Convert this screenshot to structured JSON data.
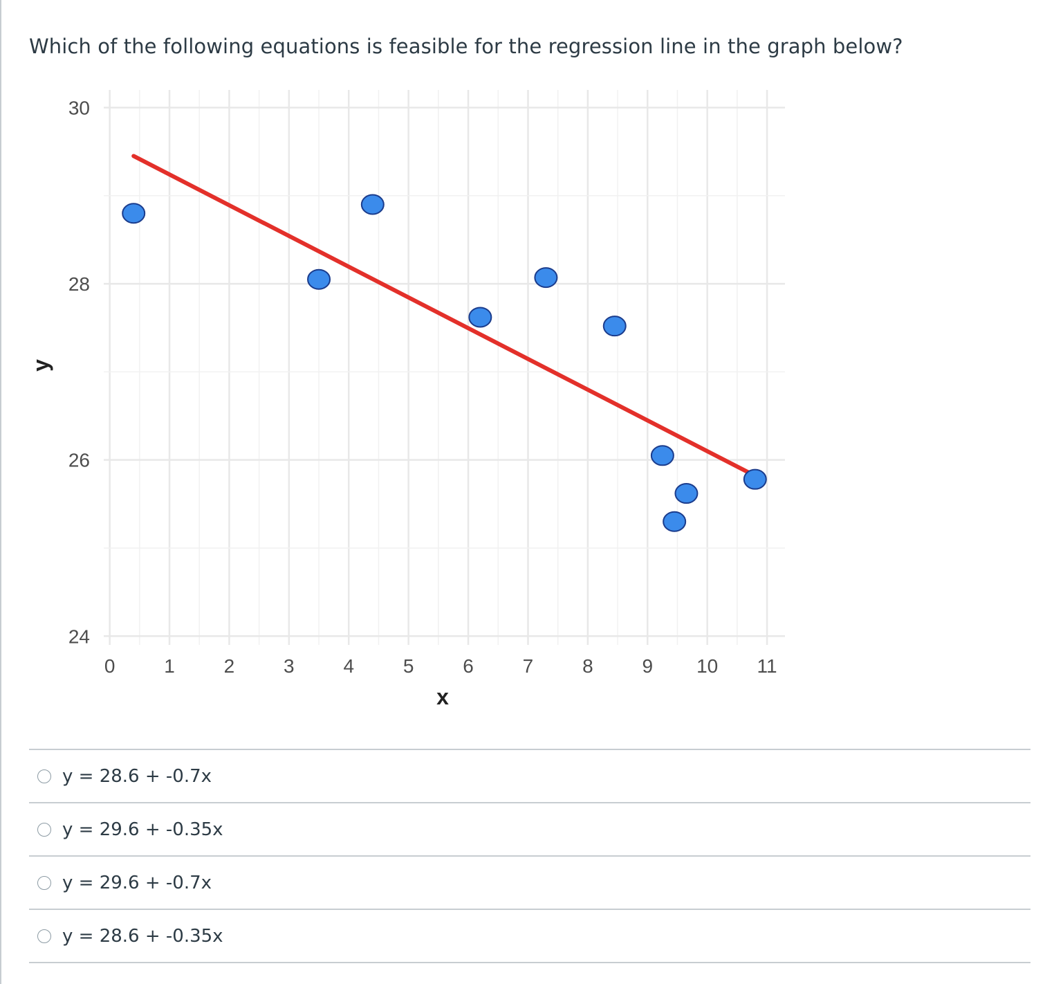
{
  "question": {
    "text": "Which of the following equations is feasible for the regression line in the graph below?"
  },
  "answers": [
    {
      "label": "y = 28.6 + -0.7x"
    },
    {
      "label": "y = 29.6 + -0.35x"
    },
    {
      "label": "y = 29.6 + -0.7x"
    },
    {
      "label": "y = 28.6 + -0.35x"
    }
  ],
  "chart_data": {
    "type": "scatter",
    "xlabel": "x",
    "ylabel": "y",
    "xlim": [
      -0.1,
      11.3
    ],
    "ylim": [
      23.9,
      30.2
    ],
    "x_ticks": [
      0,
      1,
      2,
      3,
      4,
      5,
      6,
      7,
      8,
      9,
      10,
      11
    ],
    "y_ticks": [
      24,
      26,
      28,
      30
    ],
    "grid": true,
    "points": {
      "x": [
        0.4,
        3.5,
        4.4,
        6.2,
        7.3,
        8.45,
        9.25,
        9.45,
        9.65,
        10.8
      ],
      "y": [
        28.8,
        28.05,
        28.9,
        27.62,
        28.07,
        27.52,
        26.05,
        25.3,
        25.62,
        25.78
      ],
      "color": "#3b8beb"
    },
    "regression_line": {
      "x": [
        0.4,
        10.8
      ],
      "y": [
        29.45,
        25.82
      ],
      "color": "#e3302a"
    }
  }
}
